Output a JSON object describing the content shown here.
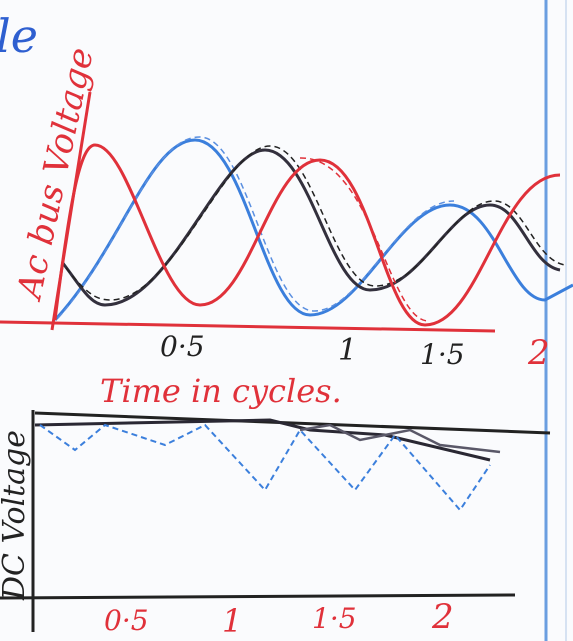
{
  "header_fragment": "le",
  "ac_plot": {
    "y_label": "Ac bus Voltage",
    "x_label": "Time in cycles.",
    "x_ticks": [
      "0·5",
      "1",
      "1·5",
      "2"
    ]
  },
  "dc_plot": {
    "y_label": "DC Voltage",
    "x_ticks": [
      "0·5",
      "1",
      "1·5",
      "2"
    ]
  }
}
